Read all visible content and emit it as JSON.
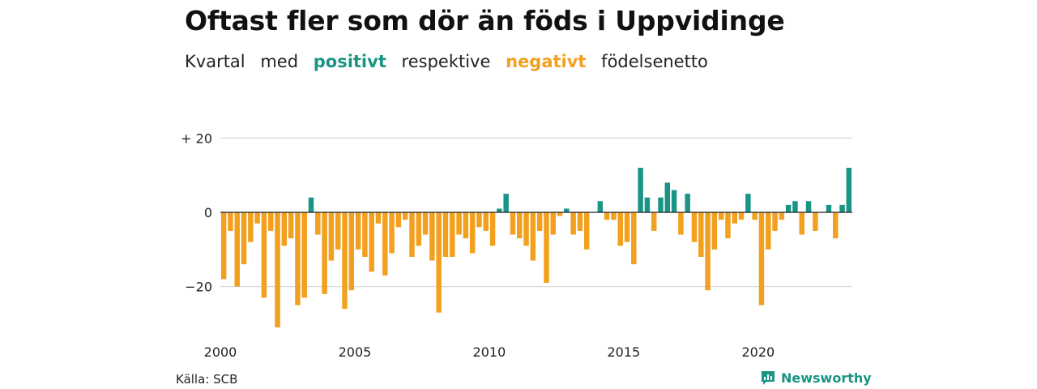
{
  "title": "Oftast fler som dör än föds i Uppvidinge",
  "subtitle": {
    "p1": "Kvartal",
    "p2": "med",
    "p3": "positivt",
    "p4": "respektive",
    "p5": "negativt",
    "p6": "födelsenetto"
  },
  "source": "Källa: SCB",
  "brand": "Newsworthy",
  "colors": {
    "positive": "#1a9585",
    "negative": "#f2a01e",
    "grid": "#d9d9d9",
    "zero_line": "#222222"
  },
  "chart_data": {
    "type": "bar",
    "ylim": [
      -33,
      23
    ],
    "y_ticks": [
      {
        "value": 20,
        "label": "+ 20"
      },
      {
        "value": 0,
        "label": "0"
      },
      {
        "value": -20,
        "label": "−20"
      }
    ],
    "x_ticks": [
      {
        "year": 2000,
        "label": "2000"
      },
      {
        "year": 2005,
        "label": "2005"
      },
      {
        "year": 2010,
        "label": "2010"
      },
      {
        "year": 2015,
        "label": "2015"
      },
      {
        "year": 2020,
        "label": "2020"
      }
    ],
    "first_quarter": "2000K1",
    "values": [
      -18,
      -5,
      -20,
      -14,
      -8,
      -3,
      -23,
      -5,
      -31,
      -9,
      -7,
      -25,
      -23,
      4,
      -6,
      -22,
      -13,
      -10,
      -26,
      -21,
      -10,
      -12,
      -16,
      -3,
      -17,
      -11,
      -4,
      -2,
      -12,
      -9,
      -6,
      -13,
      -27,
      -12,
      -12,
      -6,
      -7,
      -11,
      -4,
      -5,
      -9,
      1,
      5,
      -6,
      -7,
      -9,
      -13,
      -5,
      -19,
      -6,
      -1,
      1,
      -6,
      -5,
      -10,
      0,
      3,
      -2,
      -2,
      -9,
      -8,
      -14,
      12,
      4,
      -5,
      4,
      8,
      6,
      -6,
      5,
      -8,
      -12,
      -21,
      -10,
      -2,
      -7,
      -3,
      -2,
      5,
      -2,
      -25,
      -10,
      -5,
      -2,
      2,
      3,
      -6,
      3,
      -5,
      0,
      2,
      -7,
      2,
      12
    ]
  }
}
